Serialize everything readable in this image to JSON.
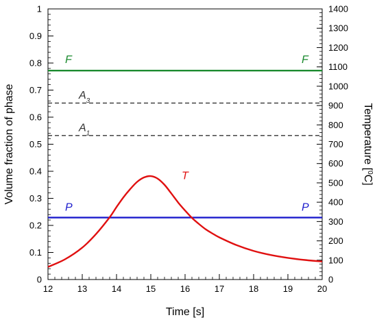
{
  "chart_data": {
    "type": "line",
    "xlabel": "Time [s]",
    "ylabel_left": "Volume fraction of phase",
    "ylabel_right": {
      "main": "Temperature [",
      "sup": "0",
      "tail": "C]"
    },
    "xlim": [
      12,
      20
    ],
    "ylim_left": [
      0,
      1
    ],
    "ylim_right": [
      0,
      1400
    ],
    "x_ticks": [
      "12",
      "13",
      "14",
      "15",
      "16",
      "17",
      "18",
      "19",
      "20"
    ],
    "y_left_ticks": [
      "0",
      "0.1",
      "0.2",
      "0.3",
      "0.4",
      "0.5",
      "0.6",
      "0.7",
      "0.8",
      "0.9",
      "1"
    ],
    "y_right_ticks": [
      "0",
      "100",
      "200",
      "300",
      "400",
      "500",
      "600",
      "700",
      "800",
      "900",
      "1000",
      "1100",
      "1200",
      "1300",
      "1400"
    ],
    "grid": false,
    "series": [
      {
        "name": "F",
        "axis": "left",
        "color": "#1a8a2e",
        "style": "solid",
        "x": [
          12,
          20
        ],
        "y": [
          0.772,
          0.772
        ],
        "labels": [
          {
            "text": "F",
            "x": 12.5,
            "y": 0.8
          },
          {
            "text": "F",
            "x": 19.4,
            "y": 0.8
          }
        ]
      },
      {
        "name": "A",
        "axis": "left",
        "color": "#333333",
        "style": "dashed",
        "x": [
          12,
          20
        ],
        "y": [
          0.652,
          0.652
        ],
        "labels": [
          {
            "text": "A",
            "sub": "3",
            "x": 12.9,
            "y": 0.668
          }
        ]
      },
      {
        "name": "A",
        "axis": "left",
        "color": "#333333",
        "style": "dashed",
        "x": [
          12,
          20
        ],
        "y": [
          0.532,
          0.532
        ],
        "labels": [
          {
            "text": "A",
            "sub": "1",
            "x": 12.9,
            "y": 0.548
          }
        ]
      },
      {
        "name": "P",
        "axis": "left",
        "color": "#1a1acc",
        "style": "solid",
        "x": [
          12,
          20
        ],
        "y": [
          0.229,
          0.229
        ],
        "labels": [
          {
            "text": "P",
            "x": 12.5,
            "y": 0.255
          },
          {
            "text": "P",
            "x": 19.4,
            "y": 0.255
          }
        ]
      },
      {
        "name": "T",
        "axis": "right",
        "color": "#e01010",
        "style": "solid",
        "x": [
          12.0,
          12.5,
          13.0,
          13.4,
          13.8,
          14.0,
          14.2,
          14.4,
          14.6,
          14.8,
          15.0,
          15.2,
          15.4,
          15.6,
          15.8,
          16.0,
          16.2,
          16.4,
          16.6,
          16.8,
          17.0,
          17.5,
          18.0,
          18.5,
          19.0,
          19.5,
          20.0
        ],
        "y": [
          65,
          105,
          165,
          235,
          322,
          375,
          425,
          468,
          505,
          528,
          535,
          522,
          490,
          445,
          398,
          357,
          319,
          288,
          260,
          238,
          218,
          178,
          148,
          127,
          112,
          101,
          93
        ],
        "labels": [
          {
            "text": "T",
            "x": 15.9,
            "y": 520
          }
        ]
      }
    ]
  }
}
